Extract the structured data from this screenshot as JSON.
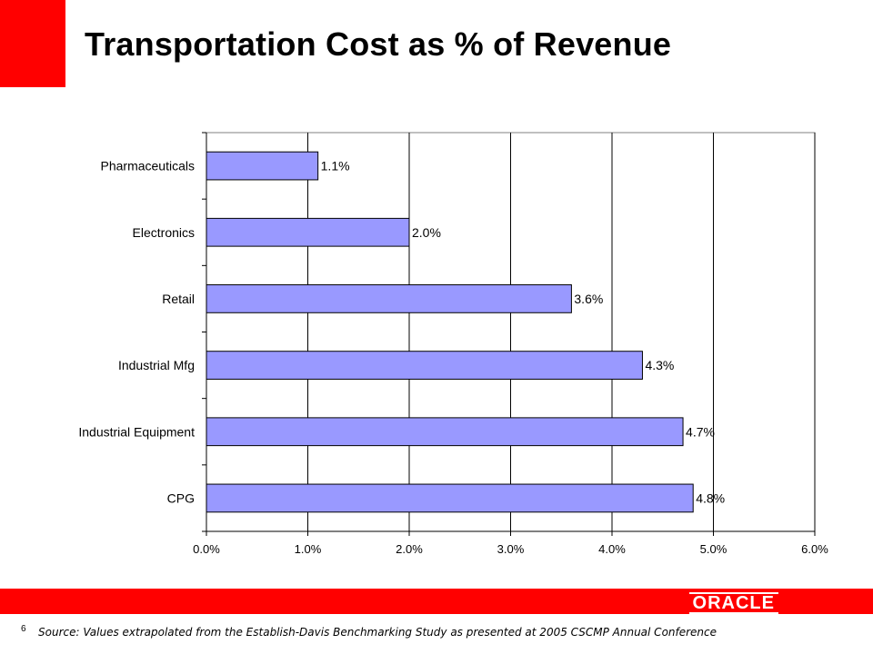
{
  "slide": {
    "title": "Transportation Cost as % of Revenue",
    "page_number": "6",
    "source": "Source: Values extrapolated from the Establish-Davis  Benchmarking Study as presented at 2005 CSCMP Annual Conference",
    "logo_text": "ORACLE"
  },
  "colors": {
    "accent": "#ff0000",
    "bar_fill": "#9999ff",
    "bar_stroke": "#000000",
    "text": "#000000"
  },
  "chart_data": {
    "type": "bar",
    "orientation": "horizontal",
    "title": "",
    "xlabel": "",
    "ylabel": "",
    "categories": [
      "Pharmaceuticals",
      "Electronics",
      "Retail",
      "Industrial Mfg",
      "Industrial Equipment",
      "CPG"
    ],
    "values": [
      1.1,
      2.0,
      3.6,
      4.3,
      4.7,
      4.8
    ],
    "data_labels": [
      "1.1%",
      "2.0%",
      "3.6%",
      "4.3%",
      "4.7%",
      "4.8%"
    ],
    "xlim": [
      0,
      6
    ],
    "x_ticks": [
      0,
      1,
      2,
      3,
      4,
      5,
      6
    ],
    "x_tick_labels": [
      "0.0%",
      "1.0%",
      "2.0%",
      "3.0%",
      "4.0%",
      "5.0%",
      "6.0%"
    ],
    "grid": "vertical",
    "legend": "none"
  }
}
